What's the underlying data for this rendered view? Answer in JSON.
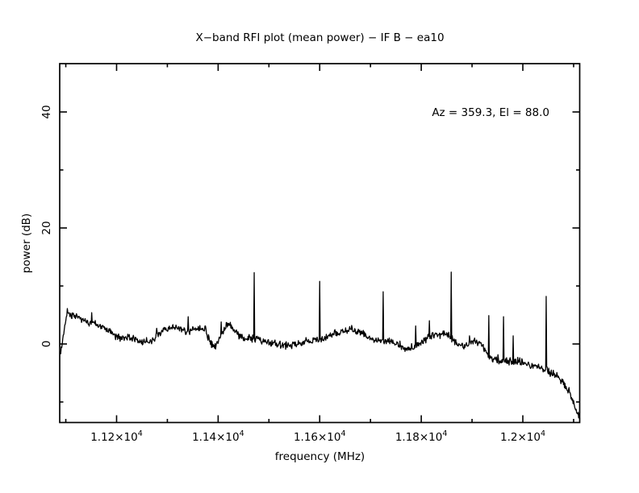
{
  "figure": {
    "background_color": "#ffffff",
    "line_color": "#000000"
  },
  "chart_data": {
    "type": "line",
    "title": "X−band RFI plot (mean power) − IF B − ea10",
    "annotation": "Az = 359.3, El = 88.0",
    "xlabel": "frequency (MHz)",
    "ylabel": "power (dB)",
    "xlim": [
      11088,
      12112
    ],
    "ylim": [
      -13.54,
      48.33
    ],
    "grid": false,
    "legend": "none",
    "x_major_ticks": [
      {
        "value": 11200,
        "base": "1.12×10",
        "sup": "4"
      },
      {
        "value": 11400,
        "base": "1.14×10",
        "sup": "4"
      },
      {
        "value": 11600,
        "base": "1.16×10",
        "sup": "4"
      },
      {
        "value": 11800,
        "base": "1.18×10",
        "sup": "4"
      },
      {
        "value": 12000,
        "base": "1.2×10",
        "sup": "4"
      }
    ],
    "x_minor_ticks": [
      11100,
      11300,
      11500,
      11700,
      11900,
      12100
    ],
    "y_major_ticks": [
      {
        "value": 0,
        "label": "0"
      },
      {
        "value": 20,
        "label": "20"
      },
      {
        "value": 40,
        "label": "40"
      }
    ],
    "y_minor_ticks": [
      -10,
      10,
      30
    ],
    "sample_step_mhz": 1,
    "noise_sigma_db": 0.32,
    "baseline_points": [
      [
        11088,
        -1.3
      ],
      [
        11090,
        -1.25
      ],
      [
        11103,
        5.56
      ],
      [
        11113,
        4.86
      ],
      [
        11129,
        4.31
      ],
      [
        11144,
        3.75
      ],
      [
        11160,
        3.33
      ],
      [
        11176,
        2.78
      ],
      [
        11192,
        1.81
      ],
      [
        11208,
        0.97
      ],
      [
        11224,
        1.25
      ],
      [
        11240,
        0.56
      ],
      [
        11256,
        0.42
      ],
      [
        11271,
        0.42
      ],
      [
        11287,
        2.08
      ],
      [
        11303,
        2.64
      ],
      [
        11316,
        2.92
      ],
      [
        11327,
        2.5
      ],
      [
        11338,
        2.08
      ],
      [
        11351,
        2.5
      ],
      [
        11362,
        2.64
      ],
      [
        11370,
        2.22
      ],
      [
        11375,
        2.64
      ],
      [
        11383,
        0.42
      ],
      [
        11390,
        -0.28
      ],
      [
        11398,
        -0.14
      ],
      [
        11406,
        1.81
      ],
      [
        11416,
        3.19
      ],
      [
        11422,
        3.33
      ],
      [
        11430,
        2.64
      ],
      [
        11441,
        1.53
      ],
      [
        11454,
        0.83
      ],
      [
        11465,
        0.97
      ],
      [
        11478,
        0.83
      ],
      [
        11494,
        0.42
      ],
      [
        11510,
        0.0
      ],
      [
        11525,
        -0.28
      ],
      [
        11541,
        -0.14
      ],
      [
        11557,
        0.0
      ],
      [
        11573,
        0.28
      ],
      [
        11589,
        0.56
      ],
      [
        11600,
        0.83
      ],
      [
        11613,
        1.11
      ],
      [
        11629,
        1.67
      ],
      [
        11644,
        2.08
      ],
      [
        11656,
        2.36
      ],
      [
        11663,
        2.5
      ],
      [
        11676,
        2.08
      ],
      [
        11692,
        1.39
      ],
      [
        11708,
        0.69
      ],
      [
        11725,
        0.42
      ],
      [
        11740,
        0.42
      ],
      [
        11756,
        -0.14
      ],
      [
        11771,
        -0.83
      ],
      [
        11783,
        -0.69
      ],
      [
        11789,
        -0.42
      ],
      [
        11798,
        0.0
      ],
      [
        11808,
        0.83
      ],
      [
        11816,
        1.25
      ],
      [
        11824,
        1.53
      ],
      [
        11835,
        1.81
      ],
      [
        11846,
        1.67
      ],
      [
        11859,
        0.97
      ],
      [
        11871,
        -0.14
      ],
      [
        11883,
        -0.42
      ],
      [
        11890,
        -0.14
      ],
      [
        11895,
        0.14
      ],
      [
        11906,
        0.42
      ],
      [
        11917,
        0.28
      ],
      [
        11927,
        -1.53
      ],
      [
        11933,
        -2.22
      ],
      [
        11941,
        -2.64
      ],
      [
        11954,
        -2.78
      ],
      [
        11962,
        -2.92
      ],
      [
        11970,
        -2.92
      ],
      [
        11981,
        -3.06
      ],
      [
        11994,
        -3.19
      ],
      [
        12010,
        -3.47
      ],
      [
        12025,
        -3.89
      ],
      [
        12037,
        -4.31
      ],
      [
        12046,
        -4.58
      ],
      [
        12057,
        -5.14
      ],
      [
        12068,
        -5.69
      ],
      [
        12078,
        -6.53
      ],
      [
        12087,
        -7.64
      ],
      [
        12097,
        -9.58
      ],
      [
        12105,
        -11.25
      ],
      [
        12110,
        -12.36
      ],
      [
        12112,
        -12.6
      ]
    ],
    "rfi_spikes": [
      [
        11151,
        5.4
      ],
      [
        11279,
        2.7
      ],
      [
        11341,
        4.7
      ],
      [
        11375,
        3.1
      ],
      [
        11406,
        3.8
      ],
      [
        11471,
        12.3
      ],
      [
        11600,
        10.8
      ],
      [
        11663,
        3.2
      ],
      [
        11725,
        9.0
      ],
      [
        11789,
        3.1
      ],
      [
        11816,
        4.0
      ],
      [
        11859,
        12.4
      ],
      [
        11895,
        1.4
      ],
      [
        11933,
        4.9
      ],
      [
        11962,
        4.7
      ],
      [
        11981,
        1.4
      ],
      [
        12046,
        8.2
      ]
    ]
  }
}
